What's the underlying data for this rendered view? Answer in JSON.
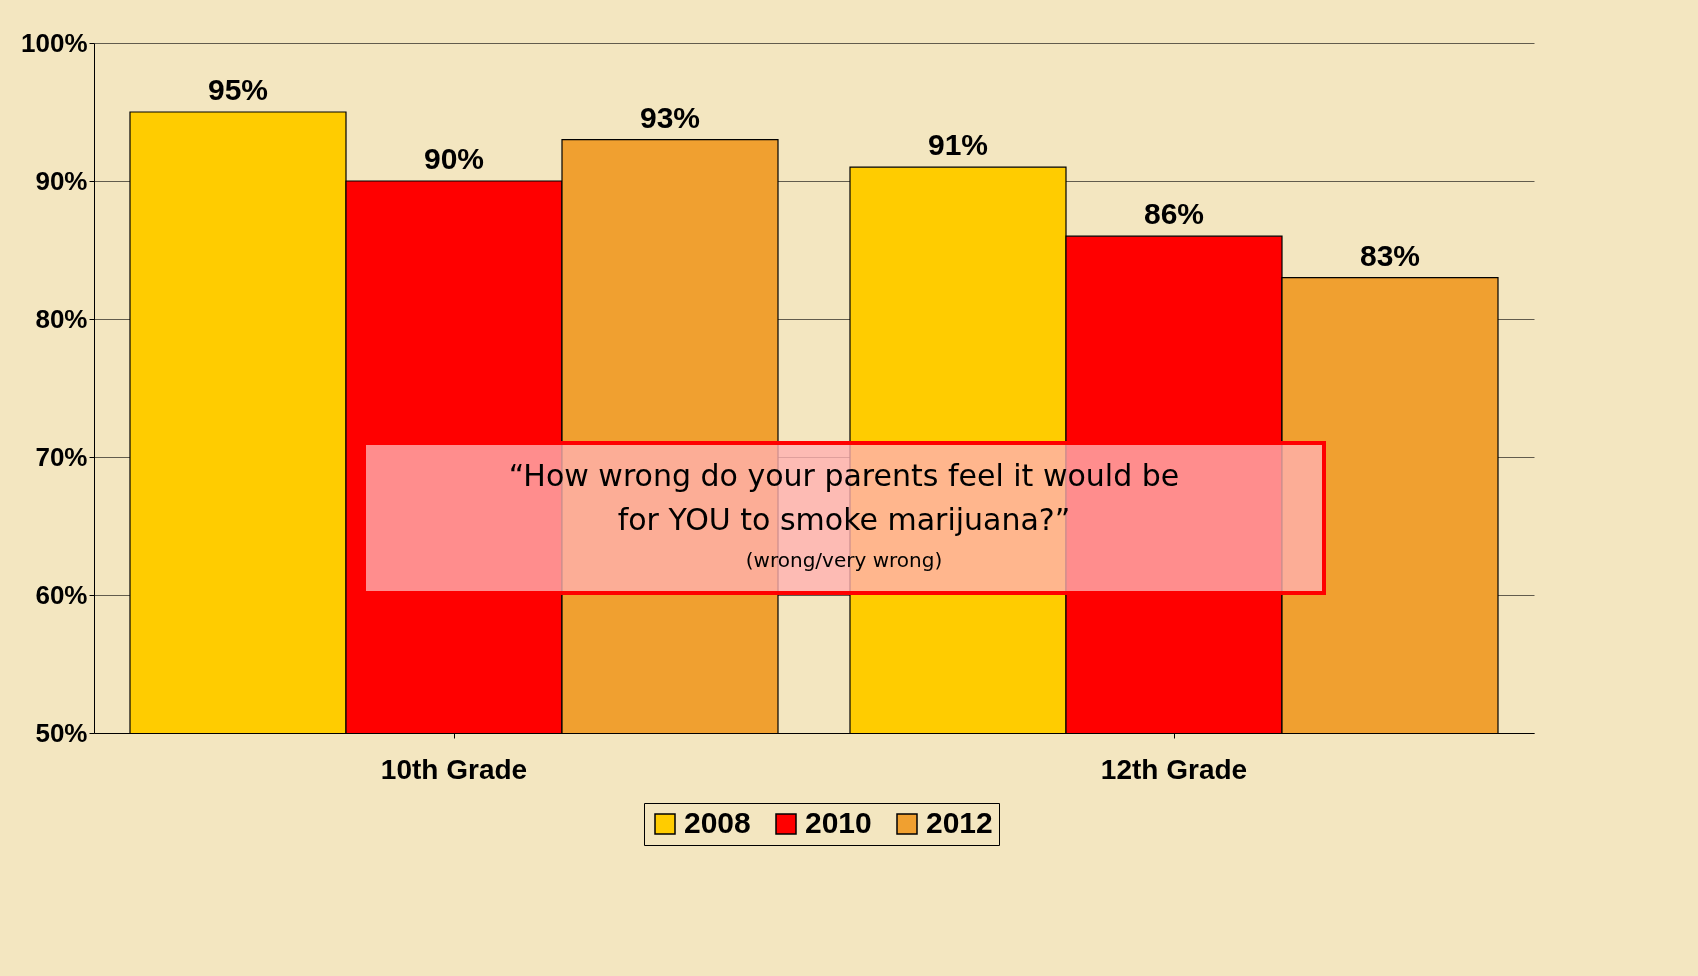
{
  "chart_data": {
    "type": "bar",
    "categories": [
      "10th Grade",
      "12th Grade"
    ],
    "series": [
      {
        "name": "2008",
        "color": "#ffcc00",
        "values": [
          95,
          91
        ],
        "value_labels": [
          "95%",
          "91%"
        ]
      },
      {
        "name": "2010",
        "color": "#ff0000",
        "values": [
          90,
          86
        ],
        "value_labels": [
          "90%",
          "86%"
        ]
      },
      {
        "name": "2012",
        "color": "#f0a030",
        "values": [
          93,
          83
        ],
        "value_labels": [
          "93%",
          "83%"
        ]
      }
    ],
    "ylim": [
      50,
      100
    ],
    "yticks": [
      {
        "value": 50,
        "label": "50%"
      },
      {
        "value": 60,
        "label": "60%"
      },
      {
        "value": 70,
        "label": "70%"
      },
      {
        "value": 80,
        "label": "80%"
      },
      {
        "value": 90,
        "label": "90%"
      },
      {
        "value": 100,
        "label": "100%"
      }
    ],
    "grid": "y",
    "legend": "bottom",
    "annotations": [
      "“How wrong do your parents feel it would be",
      "for YOU to smoke marijuana?”",
      "(wrong/very wrong)"
    ]
  }
}
